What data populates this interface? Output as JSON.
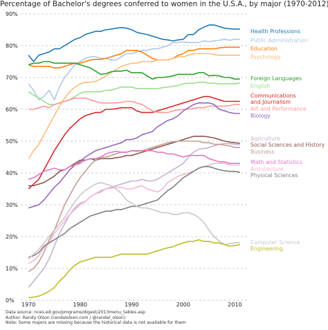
{
  "chart_data": {
    "type": "line",
    "title": "Percentage of Bachelor's degrees conferred to women in the U.S.A., by major (1970-2012)",
    "xlabel": "",
    "ylabel": "",
    "xlim": [
      1968.5,
      2012.5
    ],
    "ylim": [
      0,
      90
    ],
    "x_ticks": [
      1970,
      1980,
      1990,
      2000,
      2010
    ],
    "y_ticks": [
      0,
      10,
      20,
      30,
      40,
      50,
      60,
      70,
      80,
      90
    ],
    "y_tick_labels": [
      "0%",
      "10%",
      "20%",
      "30%",
      "40%",
      "50%",
      "60%",
      "70%",
      "80%",
      "90%"
    ],
    "grid": "horizontal dashed",
    "legend": "direct labels at right end of lines",
    "x": [
      1970,
      1971,
      1972,
      1973,
      1974,
      1975,
      1976,
      1977,
      1978,
      1979,
      1980,
      1981,
      1982,
      1983,
      1984,
      1985,
      1986,
      1987,
      1988,
      1989,
      1990,
      1991,
      1992,
      1993,
      1994,
      1995,
      1996,
      1997,
      1998,
      1999,
      2000,
      2001,
      2002,
      2003,
      2004,
      2005,
      2006,
      2007,
      2008,
      2009,
      2010,
      2011
    ],
    "series": [
      {
        "name": "Health Professions",
        "color": "#1f77b4",
        "values": [
          77,
          75,
          77,
          77.5,
          78,
          79,
          79,
          80,
          81,
          82,
          82.5,
          83.5,
          84,
          84.5,
          84.5,
          85,
          85.2,
          85.5,
          85.7,
          85.5,
          85,
          84.2,
          83.8,
          83.5,
          83,
          82.5,
          82,
          81.8,
          81.5,
          81.8,
          82,
          83.5,
          83.5,
          85,
          85.8,
          86.5,
          86.5,
          86,
          85.5,
          85.3,
          85.2,
          85.2
        ]
      },
      {
        "name": "Public Administration",
        "color": "#aec7e8",
        "values": [
          68,
          66,
          63,
          64,
          66,
          63,
          67,
          70,
          72,
          74,
          75,
          76,
          76.5,
          76.5,
          76,
          76,
          75.5,
          75.5,
          76.5,
          77.5,
          77.5,
          78,
          78.5,
          78.5,
          79,
          79,
          79.5,
          80,
          81,
          81,
          81.2,
          81,
          81,
          81,
          81.5,
          81.3,
          81.5,
          81.7,
          82,
          81.7,
          82,
          82
        ]
      },
      {
        "name": "Education",
        "color": "#ff7f0e",
        "values": [
          74,
          73.5,
          73.5,
          73.5,
          73.5,
          73,
          73,
          73.5,
          74,
          74.5,
          74.5,
          75,
          75.5,
          75.7,
          75.7,
          76,
          76.5,
          77,
          77.5,
          78.5,
          78.5,
          78.5,
          78,
          77,
          76,
          75.5,
          75.5,
          75.5,
          76,
          77,
          77.5,
          78.5,
          78.5,
          79,
          79,
          79,
          79,
          79.3,
          79.5,
          79.5,
          79.5,
          79.5
        ]
      },
      {
        "name": "Psychology",
        "color": "#ffbb78",
        "values": [
          44.5,
          47,
          49,
          52,
          55,
          58,
          61,
          63.5,
          65.5,
          67,
          68,
          68.5,
          68.5,
          68.8,
          69.5,
          70.5,
          71.5,
          72.5,
          73.5,
          74,
          74.5,
          74.5,
          75,
          75,
          75,
          75.5,
          75.5,
          75.5,
          76,
          76.5,
          76.5,
          77,
          77.5,
          77.5,
          77.5,
          77.5,
          77.2,
          77,
          77,
          77,
          77,
          77
        ]
      },
      {
        "name": "Foreign Languages",
        "color": "#2ca02c",
        "values": [
          74,
          74.5,
          74.5,
          75,
          75,
          74.5,
          74.5,
          74.5,
          74.5,
          74.5,
          74,
          73.5,
          73,
          72,
          71,
          71.2,
          71.8,
          72,
          72,
          72.3,
          71.5,
          71.5,
          71.5,
          70.5,
          69.5,
          70,
          70,
          70.2,
          70.5,
          71,
          71,
          71,
          71,
          71.5,
          71.5,
          70.5,
          70.7,
          70.5,
          70,
          70,
          69.5,
          69.5
        ]
      },
      {
        "name": "English",
        "color": "#98df8a",
        "values": [
          65.5,
          64.5,
          63.5,
          62.5,
          61.5,
          61.5,
          62,
          62.5,
          63,
          64,
          65,
          65.5,
          65.5,
          65.5,
          65.5,
          66,
          66,
          66.5,
          67,
          67,
          67,
          66.5,
          66.5,
          66.5,
          66.5,
          66.5,
          66.8,
          67,
          67.2,
          67.5,
          68,
          68.2,
          68.2,
          68.5,
          68.5,
          68.2,
          68.2,
          68,
          68,
          68,
          68,
          68.3
        ]
      },
      {
        "name": "Communications\nand Journalism",
        "color": "#d62728",
        "values": [
          35,
          36.5,
          38,
          41,
          44,
          47,
          49.5,
          52,
          54,
          55.5,
          57,
          58,
          58.5,
          59,
          59,
          60,
          60,
          60.2,
          60.5,
          60.5,
          60.5,
          59.5,
          59,
          59,
          59,
          59.5,
          60,
          60.5,
          61,
          61.5,
          62,
          62.5,
          63,
          63.5,
          64,
          64,
          63.5,
          63,
          62.5,
          62.5,
          62.5,
          62.5
        ]
      },
      {
        "name": "Art and Performance",
        "color": "#ff9896",
        "values": [
          60,
          60,
          60.5,
          61,
          60.5,
          61.5,
          62,
          62.5,
          63,
          63.5,
          63.5,
          63.5,
          63,
          62.5,
          62,
          62,
          62,
          62,
          62.2,
          62.5,
          62.5,
          62,
          61.5,
          60.5,
          59.5,
          59,
          59,
          59,
          59.5,
          59.8,
          60,
          60,
          60.3,
          60.5,
          60.5,
          61,
          61,
          61,
          61,
          61.2,
          61.5,
          61.5
        ]
      },
      {
        "name": "Biology",
        "color": "#9467bd",
        "values": [
          29,
          29.5,
          30,
          31.5,
          33.5,
          35.5,
          37,
          39,
          41,
          42.5,
          43.5,
          45,
          46,
          47,
          47.5,
          48,
          48.5,
          49,
          49.5,
          50.5,
          50.5,
          51,
          52,
          52.5,
          53,
          54.5,
          55.5,
          56.5,
          57,
          58,
          59.5,
          60.5,
          61.5,
          62,
          62,
          62,
          61.5,
          60,
          59.5,
          59,
          58.7,
          58.7
        ]
      },
      {
        "name": "Agriculture",
        "color": "#c5b0d5",
        "values": [
          4,
          6,
          8,
          10,
          13,
          17,
          21,
          24,
          27,
          29,
          30.5,
          31,
          32.5,
          33.5,
          34,
          35,
          35.5,
          36,
          36.5,
          37,
          37.5,
          37.5,
          38,
          37.5,
          37.5,
          38,
          39,
          40,
          41,
          42,
          43,
          45,
          46.5,
          47.5,
          47.7,
          48,
          48.5,
          49,
          49.2,
          49.2,
          49,
          48.8
        ]
      },
      {
        "name": "Social Sciences and History",
        "color": "#8c564b",
        "values": [
          36,
          36,
          36.5,
          37,
          38,
          39,
          40.5,
          41,
          42,
          43,
          44,
          44,
          44.5,
          44,
          44.5,
          44.5,
          44.5,
          44.8,
          45,
          45.5,
          45.5,
          46,
          46.5,
          47,
          47.5,
          48,
          48.5,
          49,
          49.5,
          50,
          50.5,
          51,
          51.5,
          51.5,
          51.5,
          51.3,
          51,
          50.5,
          50,
          49.7,
          49.5,
          49.3
        ]
      },
      {
        "name": "Business",
        "color": "#c49c94",
        "values": [
          9,
          10,
          12,
          15,
          19,
          22,
          26,
          30,
          33,
          36,
          38.5,
          40.5,
          42.5,
          44,
          45,
          45,
          45.5,
          46,
          46.5,
          46.5,
          47,
          47,
          47,
          47.5,
          48,
          48.5,
          49,
          49.5,
          49.8,
          50,
          50,
          50,
          50,
          50,
          49.5,
          49.5,
          49,
          49,
          48.7,
          48.5,
          48,
          48
        ]
      },
      {
        "name": "Math and Statistics",
        "color": "#e377c2",
        "values": [
          38,
          38.5,
          39.5,
          40.5,
          41,
          41.5,
          41,
          41,
          42,
          42.5,
          43,
          44,
          44.5,
          44.5,
          45,
          46,
          46.5,
          46.8,
          46.5,
          46.5,
          47,
          46.8,
          47,
          47,
          47,
          46.5,
          46.5,
          46,
          46,
          45.5,
          45,
          45.5,
          45.5,
          45.5,
          45.5,
          44.5,
          44,
          43.5,
          43.5,
          43,
          43,
          43
        ]
      },
      {
        "name": "Architecture",
        "color": "#f7b6d2",
        "values": [
          11.5,
          12.5,
          14,
          16.5,
          18,
          21,
          23,
          25,
          27,
          28.5,
          30,
          31,
          32.5,
          33.5,
          34.5,
          35,
          35.2,
          35.5,
          35.5,
          35,
          35,
          35.5,
          36,
          35,
          34.5,
          34,
          35,
          37,
          38,
          39,
          39.5,
          40,
          40.5,
          41.5,
          42,
          42.5,
          43,
          43,
          43,
          42.5,
          42.5,
          42.5
        ]
      },
      {
        "name": "Physical Sciences",
        "color": "#7f7f7f",
        "values": [
          13.5,
          14,
          15,
          17,
          18,
          19,
          20,
          21,
          22.5,
          23.5,
          24.5,
          25.5,
          26.5,
          27,
          27.5,
          28,
          28,
          28.5,
          28.5,
          29,
          29.5,
          29.5,
          30,
          30.5,
          31,
          31.5,
          33,
          34.5,
          35.5,
          37,
          38.5,
          39.5,
          40.5,
          41.5,
          42,
          42,
          41.5,
          41,
          40.7,
          40.5,
          40.5,
          40.2
        ]
      },
      {
        "name": "Computer Science",
        "color": "#c7c7c7",
        "values": [
          13,
          14.5,
          16,
          18,
          20,
          22,
          24,
          26,
          28.5,
          31,
          33,
          34.5,
          35.5,
          36.5,
          37,
          36.5,
          36,
          35,
          33.5,
          31.5,
          30.5,
          29.5,
          29,
          29,
          28.5,
          28,
          27.5,
          27.5,
          27,
          27,
          27.5,
          27.5,
          27,
          26,
          24.5,
          22,
          20,
          18.5,
          17.5,
          17.8,
          18,
          18.2
        ]
      },
      {
        "name": "Engineering",
        "color": "#bcbd22",
        "values": [
          0.8,
          1,
          1.3,
          2,
          2.8,
          4,
          6,
          7.5,
          9.5,
          11,
          12,
          12.5,
          13,
          13.5,
          13.5,
          13.5,
          13.5,
          14,
          14.5,
          14.5,
          14.5,
          14.5,
          14.5,
          14.5,
          15,
          15.5,
          16,
          16.5,
          16.8,
          17.5,
          18,
          18.5,
          18.5,
          19,
          18.5,
          18.5,
          18,
          18,
          17.5,
          17,
          17.2,
          17.5
        ]
      }
    ]
  },
  "footer": {
    "line1": "Data source: nces.ed.gov/programs/digest/2013menu_tables.asp",
    "line2": "Author: Randy Olson (randalolson.com / @randal_olson)",
    "line3": "Note: Some majors are missing because the historical data is not available for them"
  }
}
